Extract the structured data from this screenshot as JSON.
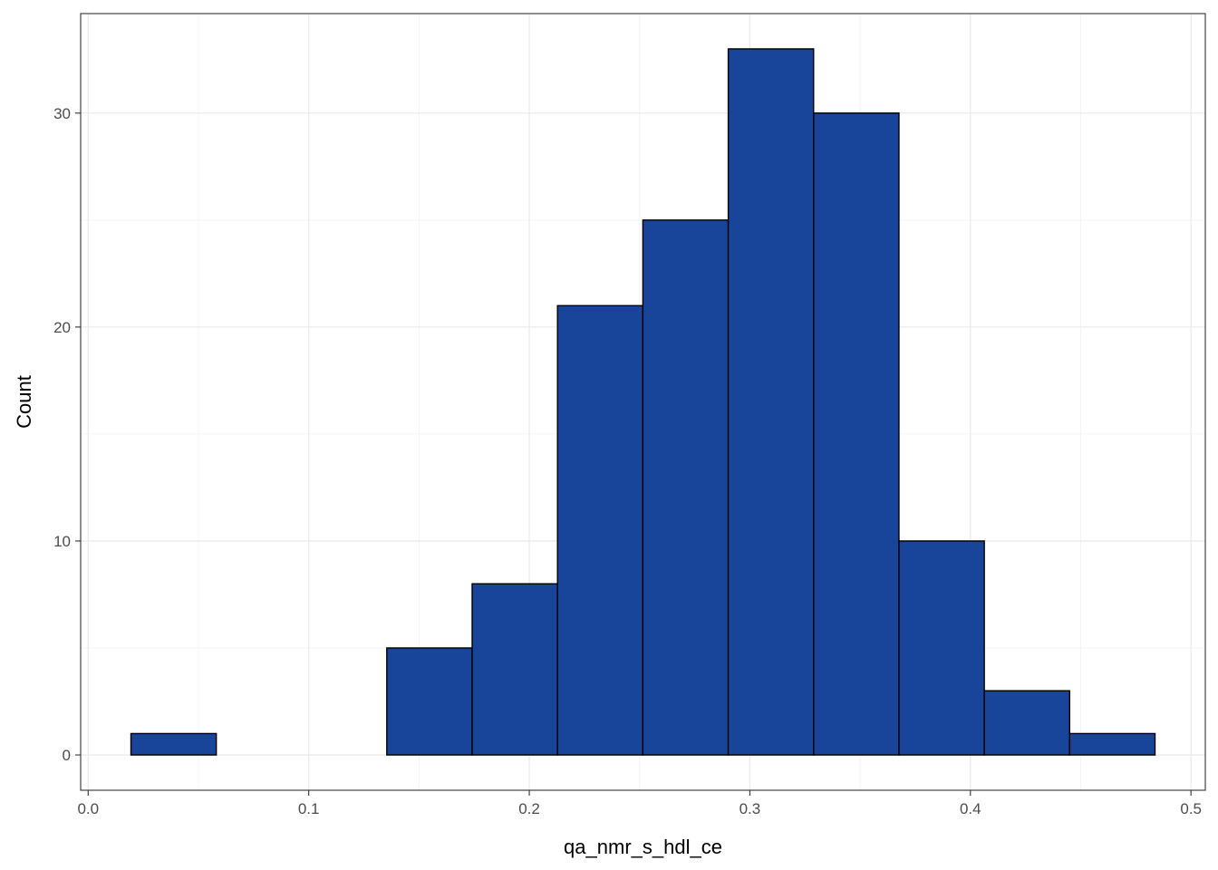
{
  "chart_data": {
    "type": "bar",
    "subtype": "histogram",
    "title": "",
    "xlabel": "qa_nmr_s_hdl_ce",
    "ylabel": "Count",
    "bin_edges": [
      0.0194,
      0.0581,
      0.0968,
      0.1354,
      0.1741,
      0.2128,
      0.2515,
      0.2902,
      0.3289,
      0.3676,
      0.4063,
      0.445,
      0.4837
    ],
    "values": [
      1,
      0,
      0,
      5,
      8,
      21,
      25,
      33,
      30,
      10,
      3,
      1
    ],
    "xlim": [
      -0.0034,
      0.5065
    ],
    "ylim": [
      -1.65,
      34.65
    ],
    "x_ticks": [
      0.0,
      0.1,
      0.2,
      0.3,
      0.4,
      0.5
    ],
    "x_tick_labels": [
      "0.0",
      "0.1",
      "0.2",
      "0.3",
      "0.4",
      "0.5"
    ],
    "y_ticks": [
      0,
      10,
      20,
      30
    ],
    "y_tick_labels": [
      "0",
      "10",
      "20",
      "30"
    ],
    "y_minor_ticks": [
      5,
      15,
      25
    ],
    "x_minor_ticks": [
      0.05,
      0.15,
      0.25,
      0.35,
      0.45
    ],
    "grid": true,
    "legend": "none",
    "colors": {
      "bar_fill": "#184499",
      "bar_stroke": "#000000",
      "grid_major": "#ebebeb",
      "grid_minor": "#f4f4f4",
      "panel_border": "#333333",
      "tick_text": "#4d4d4d"
    }
  }
}
